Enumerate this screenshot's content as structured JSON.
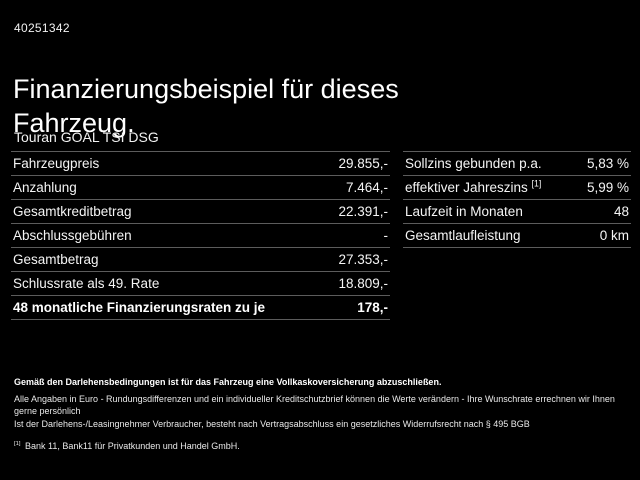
{
  "header": {
    "id_number": "40251342",
    "title_line1": "Finanzierungsbeispiel für dieses",
    "title_line2": "Fahrzeug.",
    "vehicle": "Touran GOAL TSI DSG"
  },
  "left_table": {
    "rows": [
      {
        "label": "Fahrzeugpreis",
        "value": "29.855,-"
      },
      {
        "label": "Anzahlung",
        "value": "7.464,-"
      },
      {
        "label": "Gesamtkreditbetrag",
        "value": "22.391,-"
      },
      {
        "label": "Abschlussgebühren",
        "value": "-"
      },
      {
        "label": "Gesamtbetrag",
        "value": "27.353,-"
      },
      {
        "label": "Schlussrate als 49. Rate",
        "value": "18.809,-"
      },
      {
        "label": "48 monatliche Finanzierungsraten zu je",
        "value": "178,-",
        "bold": true
      }
    ]
  },
  "right_table": {
    "rows": [
      {
        "label": "Sollzins gebunden p.a.",
        "value": "5,83 %"
      },
      {
        "label": "effektiver Jahreszins ",
        "label_sup": "[1]",
        "value": "5,99 %"
      },
      {
        "label": "Laufzeit in Monaten",
        "value": "48"
      },
      {
        "label": "Gesamtlaufleistung",
        "value": "0 km"
      }
    ]
  },
  "footer": {
    "insurance_note": "Gemäß den Darlehensbedingungen ist für das Fahrzeug eine Vollkaskoversicherung abzuschließen.",
    "disclaimer": "Alle Angaben in Euro - Rundungsdifferenzen und ein individueller Kreditschutzbrief können die Werte verändern - Ihre Wunschrate errechnen wir Ihnen gerne persönlich",
    "legal": "Ist der Darlehens-/Leasingnehmer Verbraucher, besteht nach Vertragsabschluss ein gesetzliches Widerrufsrecht nach § 495 BGB",
    "footnote_marker": "[1]",
    "footnote_text": "Bank 11, Bank11 für Privatkunden und Handel GmbH."
  }
}
